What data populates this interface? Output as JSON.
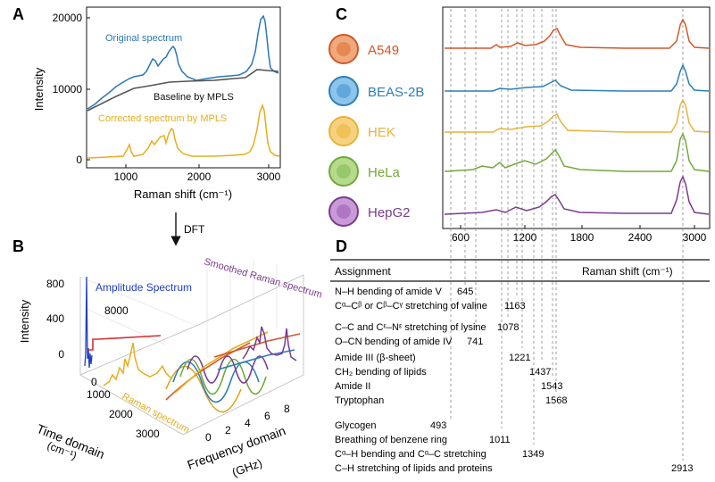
{
  "panels": {
    "A": "A",
    "B": "B",
    "C": "C",
    "D": "D"
  },
  "panel_a": {
    "ylabel": "Intensity",
    "xlabel": "Raman shift (cm⁻¹)",
    "yticks": [
      "20000",
      "10000",
      "0"
    ],
    "xticks": [
      "1000",
      "2000",
      "3000"
    ],
    "label_original": "Original spectrum",
    "label_baseline": "Baseline by MPLS",
    "label_corrected": "Corrected spectrum by MPLS",
    "colors": {
      "original": "#2a78b5",
      "baseline": "#555555",
      "corrected": "#e6ad1f"
    }
  },
  "arrow": {
    "label": "DFT"
  },
  "panel_b": {
    "ylabel": "Intensity",
    "yticks": [
      "800",
      "400",
      "0"
    ],
    "inner_tick_top": "8000",
    "inner_tick_bottom": "0",
    "amplitude_label": "Amplitude Spectrum",
    "smoothed_label": "Smoothed Raman spectrum",
    "raman_label": "Raman spectrum",
    "time_axis_label": "Time domain",
    "time_axis_unit": "(cm⁻¹)",
    "time_ticks": [
      "1000",
      "2000",
      "3000"
    ],
    "freq_axis_label": "Frequency domain",
    "freq_axis_unit": "(GHz)",
    "freq_ticks": [
      "0",
      "2",
      "4",
      "6",
      "8"
    ]
  },
  "panel_c": {
    "xticks": [
      "600",
      "1200",
      "1800",
      "2400",
      "3000"
    ],
    "cells": [
      {
        "name": "A549",
        "color": "#d1572a"
      },
      {
        "name": "BEAS-2B",
        "color": "#2b7fb8"
      },
      {
        "name": "HEK",
        "color": "#e8b23a"
      },
      {
        "name": "HeLa",
        "color": "#73a83a"
      },
      {
        "name": "HepG2",
        "color": "#7a3a8f"
      }
    ]
  },
  "panel_d": {
    "header_assignment": "Assignment",
    "header_shift": "Raman shift (cm⁻¹)",
    "rows": [
      {
        "text": "N–H bending of amide V",
        "value": "645"
      },
      {
        "text": "Cᵅ–Cᵝ or Cᵝ–Cᵞ stretching of valine",
        "value": "1163"
      },
      {
        "text": "C–C and Cᵋ–Nᵋ stretching of lysine",
        "value": "1078"
      },
      {
        "text": "O–CN bending of amide IV",
        "value": "741"
      },
      {
        "text": "Amide III (β-sheet)",
        "value": "1221"
      },
      {
        "text": "CH₂ bending of lipids",
        "value": "1437"
      },
      {
        "text": "Amide II",
        "value": "1543"
      },
      {
        "text": "Tryptophan",
        "value": "1568"
      },
      {
        "text": "Glycogen",
        "value": "493"
      },
      {
        "text": "Breathing of benzene ring",
        "value": "1011"
      },
      {
        "text": "Cᵅ–H bending and Cᵅ–C stretching",
        "value": "1349"
      },
      {
        "text": "C–H stretching of lipids and proteins",
        "value": "2913"
      }
    ]
  }
}
